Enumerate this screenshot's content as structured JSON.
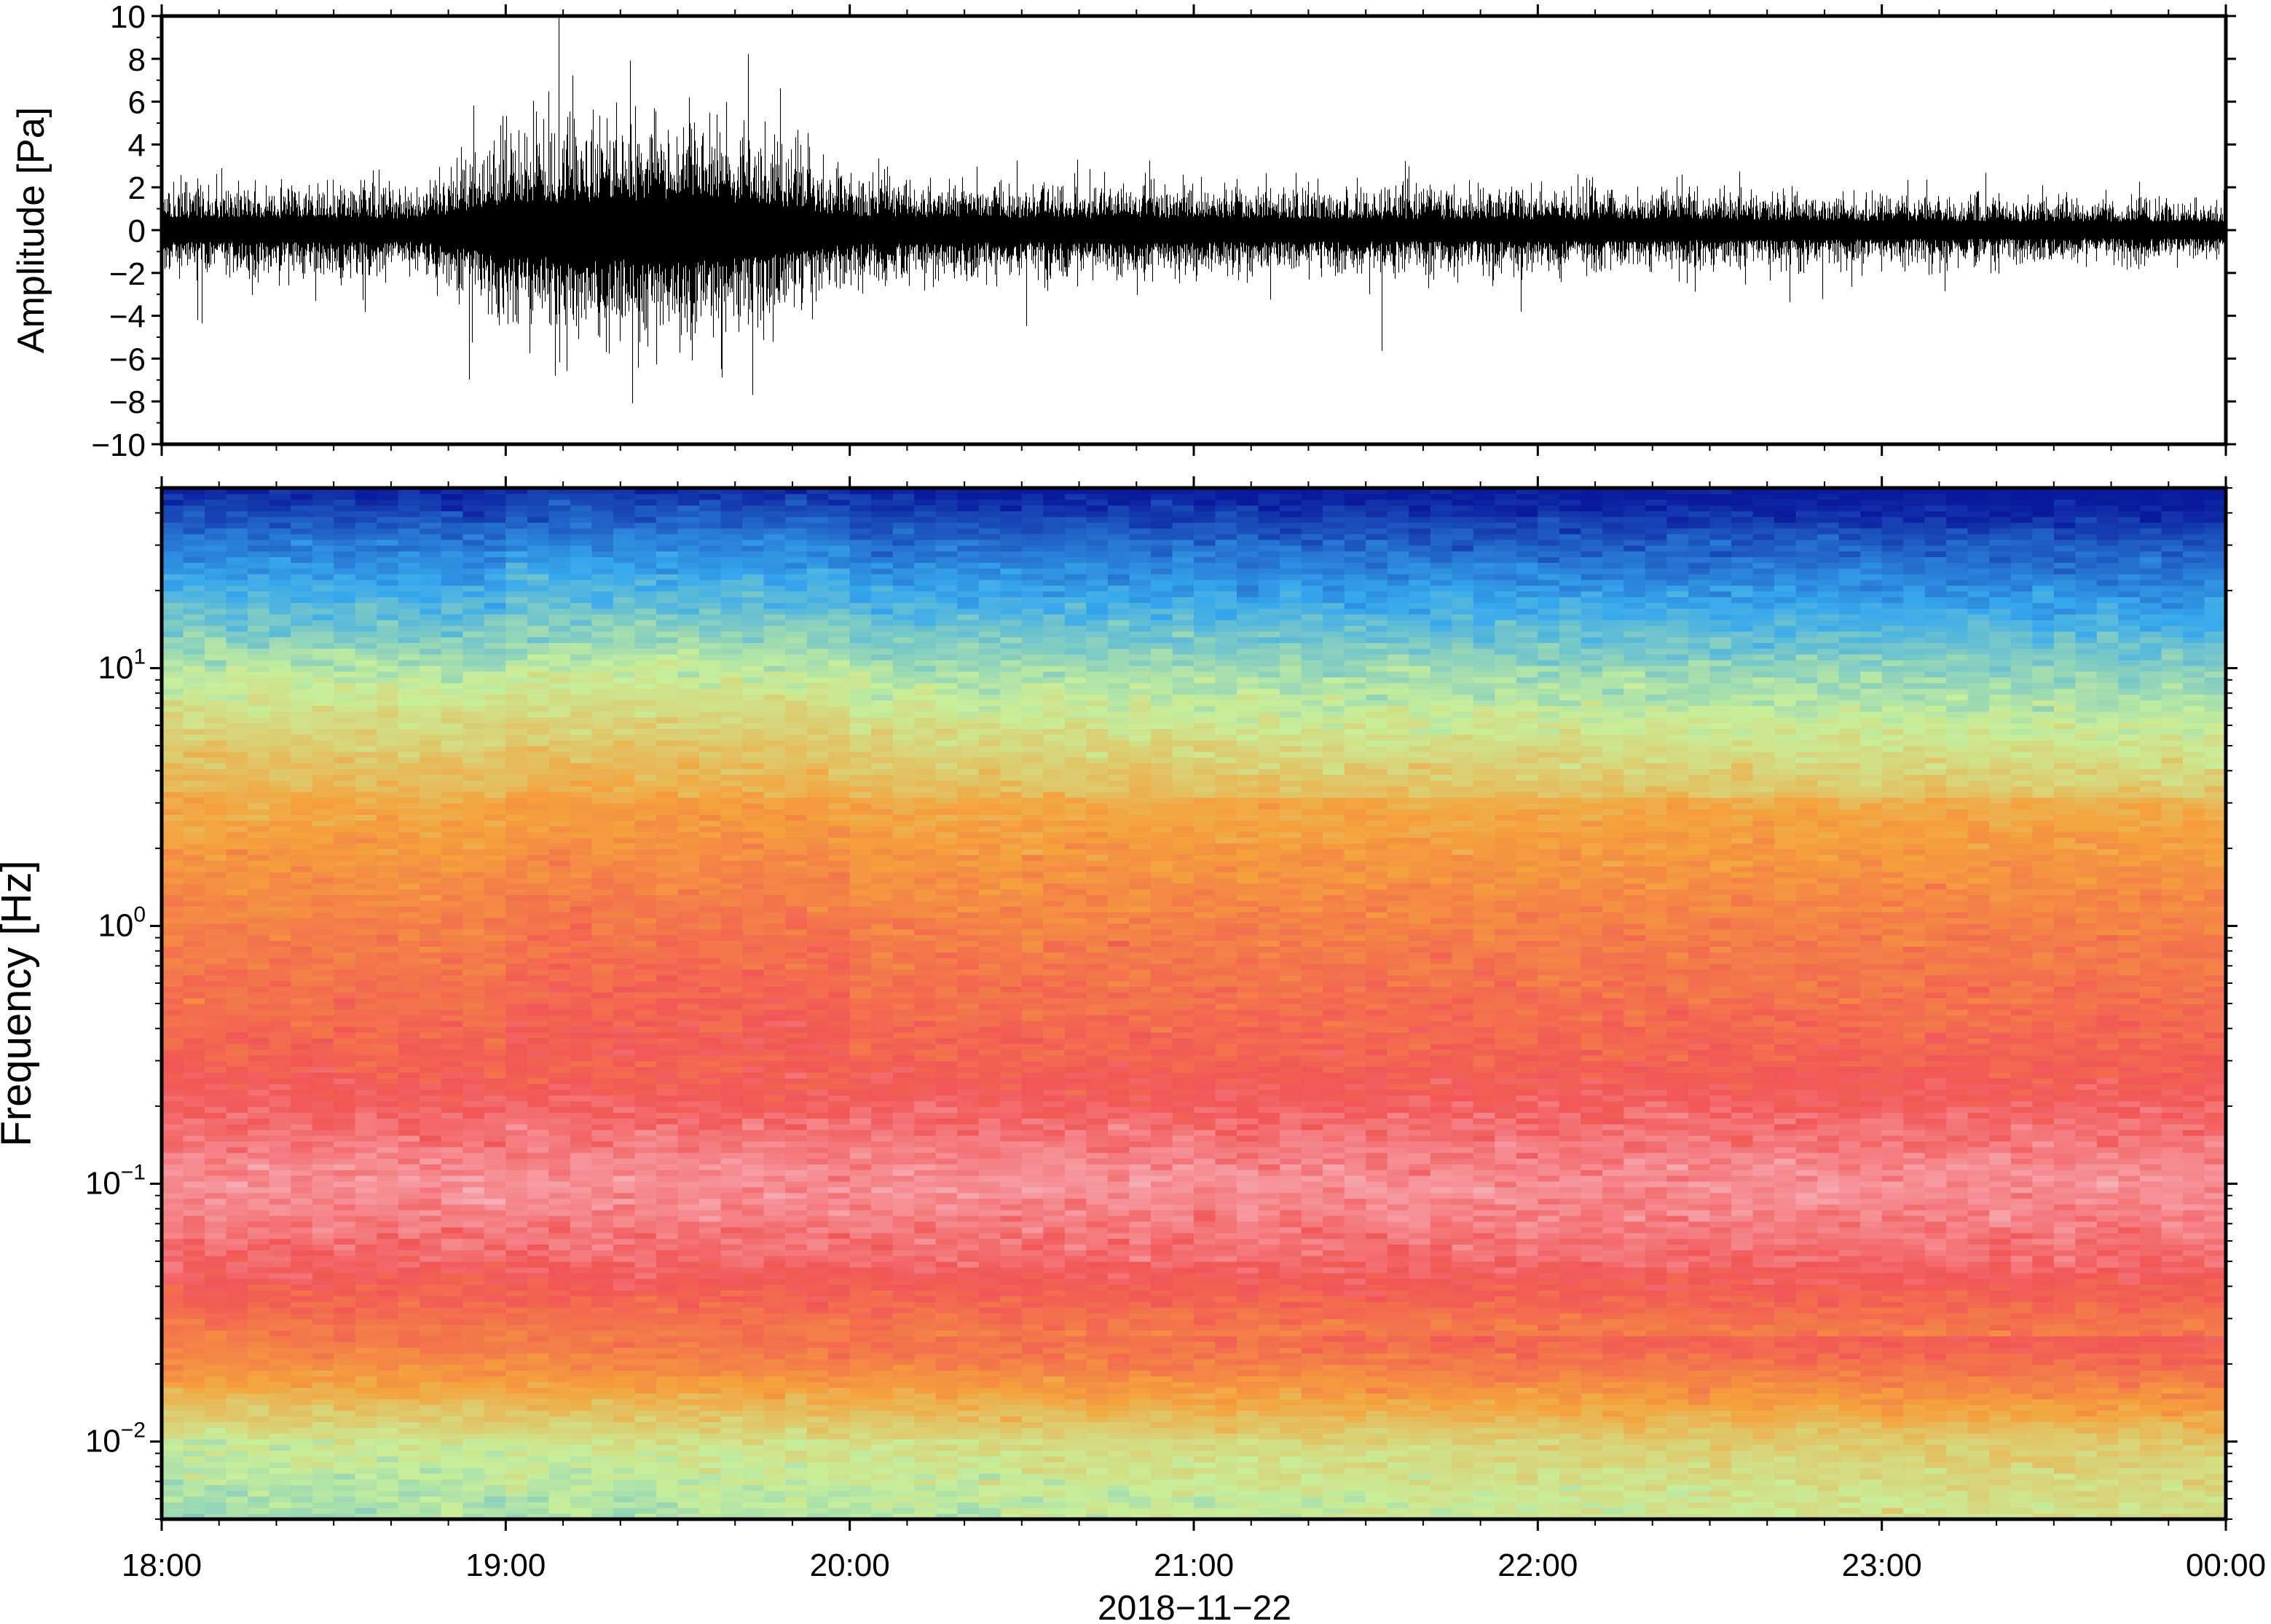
{
  "chart_data": [
    {
      "type": "line",
      "panel": "waveform",
      "ylabel": "Amplitude [Pa]",
      "xlabel": "",
      "ylim": [
        -10,
        10
      ],
      "yticks": [
        -10,
        -8,
        -6,
        -4,
        -2,
        0,
        2,
        4,
        6,
        8,
        10
      ],
      "ytick_labels": [
        "−10",
        "−8",
        "−6",
        "−4",
        "−2",
        "0",
        "2",
        "4",
        "6",
        "8",
        "10"
      ],
      "xlim": [
        "18:00",
        "00:00"
      ],
      "grid": false,
      "series": [
        {
          "color": "#000000",
          "x": [
            "18:00",
            "18:15",
            "18:30",
            "18:45",
            "19:00",
            "19:15",
            "19:30",
            "19:45",
            "20:00",
            "20:15",
            "20:30",
            "20:45",
            "21:00",
            "21:15",
            "21:30",
            "21:45",
            "22:00",
            "22:15",
            "22:30",
            "22:45",
            "23:00",
            "23:15",
            "23:30",
            "23:45",
            "00:00"
          ],
          "envelope_amplitude": [
            3.2,
            3.3,
            3.4,
            3.2,
            7.0,
            7.8,
            8.5,
            7.2,
            3.8,
            3.6,
            3.4,
            3.3,
            3.3,
            3.2,
            3.1,
            3.0,
            3.0,
            2.9,
            2.8,
            2.7,
            2.5,
            2.4,
            2.3,
            2.3,
            2.2
          ]
        }
      ]
    },
    {
      "type": "heatmap",
      "panel": "spectrogram",
      "ylabel": "Frequency [Hz]",
      "xlabel": "2018−11−22",
      "yscale": "log",
      "ylim": [
        0.005,
        50
      ],
      "yticks": [
        0.01,
        0.1,
        1,
        10
      ],
      "ytick_labels": [
        {
          "base": "10",
          "exp": "−2"
        },
        {
          "base": "10",
          "exp": "−1"
        },
        {
          "base": "10",
          "exp": "0"
        },
        {
          "base": "10",
          "exp": "1"
        }
      ],
      "xticks": [
        "18:00",
        "19:00",
        "20:00",
        "21:00",
        "22:00",
        "23:00",
        "00:00"
      ],
      "colormap": "rainbow (low = blue/green, high = red/pink)",
      "colors": {
        "low": "#0a1a9c",
        "mid_low": "#36a8ee",
        "mid": "#c8ef9a",
        "mid_high": "#f5a23c",
        "high": "#f25656",
        "peak": "#f7b0b8"
      },
      "time_bins": 96,
      "freq_bins": 180,
      "relative_power_profile_by_frequency_hz": [
        {
          "freq": 0.006,
          "level": 0.4
        },
        {
          "freq": 0.01,
          "level": 0.46
        },
        {
          "freq": 0.02,
          "level": 0.7
        },
        {
          "freq": 0.05,
          "level": 0.88
        },
        {
          "freq": 0.1,
          "level": 0.95
        },
        {
          "freq": 0.3,
          "level": 0.82
        },
        {
          "freq": 1,
          "level": 0.74
        },
        {
          "freq": 3,
          "level": 0.63
        },
        {
          "freq": 10,
          "level": 0.43
        },
        {
          "freq": 30,
          "level": 0.18
        },
        {
          "freq": 50,
          "level": 0.02
        }
      ]
    }
  ]
}
